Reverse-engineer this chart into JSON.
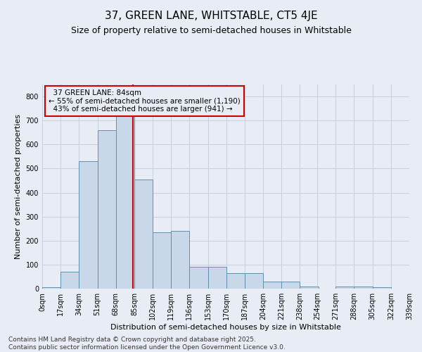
{
  "title": "37, GREEN LANE, WHITSTABLE, CT5 4JE",
  "subtitle": "Size of property relative to semi-detached houses in Whitstable",
  "xlabel": "Distribution of semi-detached houses by size in Whitstable",
  "ylabel": "Number of semi-detached properties",
  "property_size": 84,
  "property_label": "37 GREEN LANE: 84sqm",
  "pct_smaller": 55,
  "pct_larger": 43,
  "n_smaller": 1190,
  "n_larger": 941,
  "bin_edges": [
    0,
    17,
    34,
    51,
    68,
    85,
    102,
    119,
    136,
    153,
    170,
    187,
    204,
    221,
    238,
    254,
    271,
    288,
    305,
    322,
    339
  ],
  "bar_heights": [
    5,
    70,
    530,
    660,
    760,
    455,
    235,
    240,
    92,
    90,
    65,
    65,
    30,
    30,
    10,
    0,
    10,
    10,
    5,
    0
  ],
  "bar_color": "#c8d8e8",
  "bar_edge_color": "#6090b0",
  "highlight_color": "#cc0000",
  "annotation_box_edge": "#cc0000",
  "grid_color": "#c8d0de",
  "bg_color": "#e8edf5",
  "footer_text": "Contains HM Land Registry data © Crown copyright and database right 2025.\nContains public sector information licensed under the Open Government Licence v3.0.",
  "title_fontsize": 11,
  "subtitle_fontsize": 9,
  "axis_label_fontsize": 8,
  "tick_fontsize": 7,
  "annotation_fontsize": 7.5,
  "footer_fontsize": 6.5,
  "ylim": [
    0,
    850
  ]
}
